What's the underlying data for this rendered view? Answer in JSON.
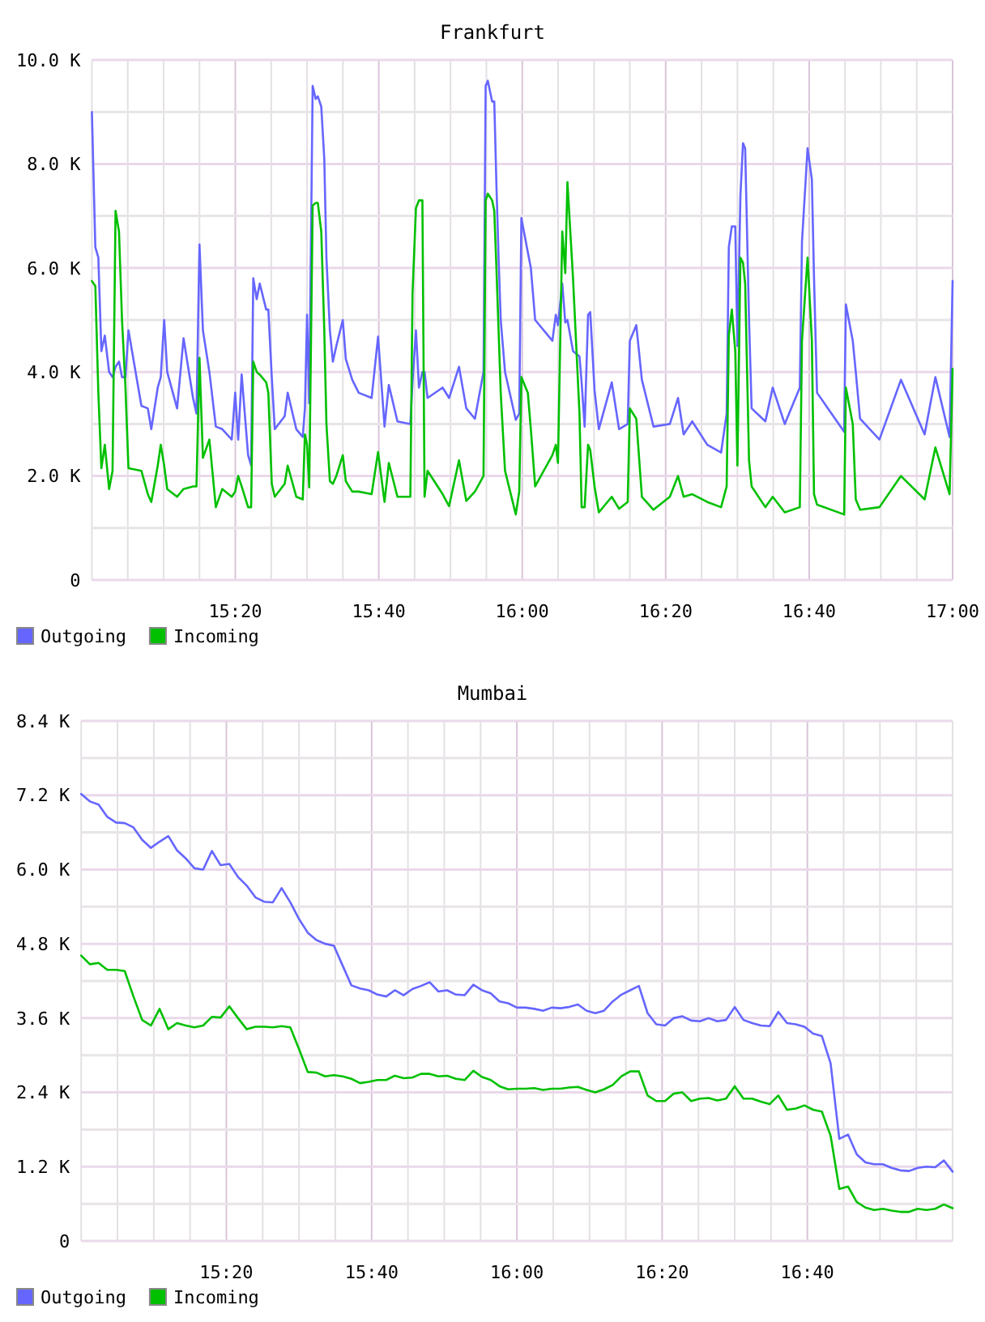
{
  "chart_data": [
    {
      "type": "line",
      "title": "Frankfurt",
      "x": [
        15.0,
        15.008,
        15.015,
        15.022,
        15.03,
        15.04,
        15.048,
        15.055,
        15.063,
        15.07,
        15.078,
        15.085,
        15.115,
        15.13,
        15.138,
        15.153,
        15.16,
        15.168,
        15.175,
        15.198,
        15.213,
        15.235,
        15.243,
        15.25,
        15.258,
        15.273,
        15.288,
        15.303,
        15.325,
        15.333,
        15.34,
        15.348,
        15.363,
        15.37,
        15.375,
        15.383,
        15.39,
        15.405,
        15.41,
        15.418,
        15.425,
        15.448,
        15.455,
        15.475,
        15.49,
        15.495,
        15.5,
        15.505,
        15.513,
        15.52,
        15.525,
        15.533,
        15.54,
        15.545,
        15.553,
        15.56,
        15.568,
        15.583,
        15.59,
        15.605,
        15.62,
        15.65,
        15.665,
        15.68,
        15.69,
        15.71,
        15.74,
        15.745,
        15.753,
        15.76,
        15.768,
        15.773,
        15.78,
        15.815,
        15.83,
        15.853,
        15.87,
        15.89,
        15.91,
        15.915,
        15.92,
        15.93,
        15.935,
        15.94,
        15.945,
        15.95,
        15.96,
        15.985,
        15.993,
        15.998,
        16.013,
        16.02,
        16.03,
        16.07,
        16.078,
        16.083,
        16.093,
        16.1,
        16.105,
        16.118,
        16.133,
        16.138,
        16.145,
        16.153,
        16.158,
        16.168,
        16.178,
        16.208,
        16.225,
        16.245,
        16.25,
        16.265,
        16.278,
        16.305,
        16.343,
        16.362,
        16.375,
        16.395,
        16.43,
        16.462,
        16.475,
        16.48,
        16.487,
        16.495,
        16.5,
        16.507,
        16.513,
        16.518,
        16.527,
        16.533,
        16.565,
        16.582,
        16.61,
        16.645,
        16.65,
        16.663,
        16.673,
        16.678,
        16.685,
        16.748,
        16.752,
        16.768,
        16.775,
        16.785,
        16.83,
        16.88,
        16.935,
        16.96,
        16.993,
        17.0
      ],
      "series": [
        {
          "name": "Outgoing",
          "color": "#6666ff",
          "values": [
            9000,
            6400,
            6200,
            4400,
            4700,
            4000,
            3900,
            4100,
            4200,
            3900,
            3900,
            4800,
            3350,
            3300,
            2900,
            3700,
            3900,
            5000,
            4000,
            3300,
            4650,
            3500,
            3200,
            6450,
            4800,
            4000,
            2950,
            2900,
            2700,
            3600,
            2700,
            3950,
            2400,
            2200,
            5800,
            5400,
            5700,
            5200,
            5200,
            3900,
            2900,
            3150,
            3600,
            2900,
            2750,
            3300,
            5100,
            3400,
            9500,
            9250,
            9300,
            9100,
            8100,
            6200,
            4800,
            4200,
            4500,
            5000,
            4250,
            3850,
            3600,
            3500,
            4680,
            2950,
            3750,
            3050,
            3000,
            3800,
            4800,
            3700,
            4000,
            4000,
            3500,
            3700,
            3500,
            4100,
            3300,
            3100,
            4000,
            9500,
            9600,
            9200,
            9200,
            7600,
            6200,
            5000,
            4000,
            3080,
            3200,
            6960,
            6300,
            6000,
            5000,
            4600,
            5100,
            4900,
            5700,
            4950,
            5000,
            4400,
            4300,
            3800,
            2950,
            5100,
            5150,
            3650,
            2900,
            3800,
            2900,
            3000,
            4600,
            4900,
            3850,
            2950,
            3000,
            3500,
            2800,
            3050,
            2600,
            2450,
            3200,
            6400,
            6800,
            6800,
            4500,
            7400,
            8400,
            8300,
            5000,
            3300,
            3050,
            3700,
            3000,
            3700,
            6500,
            8300,
            7700,
            5800,
            3600,
            2850,
            5300,
            4600,
            4000,
            3100,
            2700,
            3850,
            2800,
            3900,
            2750,
            5750
          ]
        },
        {
          "name": "Incoming",
          "color": "#00c000",
          "values": [
            5750,
            5650,
            3600,
            2150,
            2600,
            1750,
            2100,
            7100,
            6700,
            5000,
            3700,
            2150,
            2100,
            1650,
            1500,
            2200,
            2600,
            2200,
            1750,
            1600,
            1750,
            1800,
            1800,
            4270,
            2350,
            2700,
            1400,
            1750,
            1600,
            1700,
            2000,
            1800,
            1400,
            1400,
            4200,
            4000,
            3950,
            3800,
            3600,
            1850,
            1600,
            1850,
            2200,
            1600,
            1550,
            2800,
            2600,
            1780,
            7200,
            7250,
            7250,
            6700,
            4800,
            3000,
            1900,
            1850,
            2000,
            2400,
            1900,
            1700,
            1700,
            1650,
            2460,
            1500,
            2250,
            1600,
            1600,
            5500,
            7150,
            7300,
            7300,
            1600,
            2100,
            1650,
            1420,
            2300,
            1520,
            1700,
            2000,
            7300,
            7430,
            7300,
            7100,
            6000,
            4800,
            3600,
            2100,
            1260,
            1700,
            3900,
            3600,
            2900,
            1800,
            2400,
            2600,
            2250,
            6700,
            5900,
            7650,
            5800,
            3200,
            1400,
            1400,
            2600,
            2500,
            1800,
            1300,
            1600,
            1370,
            1500,
            3300,
            3100,
            1600,
            1350,
            1600,
            2000,
            1600,
            1650,
            1500,
            1400,
            1800,
            4700,
            5200,
            4400,
            2200,
            6200,
            6100,
            5700,
            2300,
            1800,
            1400,
            1600,
            1300,
            1400,
            4600,
            6200,
            4600,
            1650,
            1450,
            1260,
            3700,
            3000,
            1550,
            1350,
            1400,
            2000,
            1550,
            2550,
            1650,
            4060
          ]
        }
      ],
      "xlim": [
        15,
        17
      ],
      "xticks": [
        {
          "value": 15,
          "label": null
        },
        {
          "value": 15.0833,
          "label": null
        },
        {
          "value": 15.1667,
          "label": null
        },
        {
          "value": 15.25,
          "label": null
        },
        {
          "value": 15.3333,
          "label": "15:20"
        },
        {
          "value": 15.4167,
          "label": null
        },
        {
          "value": 15.5,
          "label": null
        },
        {
          "value": 15.5833,
          "label": null
        },
        {
          "value": 15.6667,
          "label": "15:40"
        },
        {
          "value": 15.75,
          "label": null
        },
        {
          "value": 15.8333,
          "label": null
        },
        {
          "value": 15.9167,
          "label": null
        },
        {
          "value": 16,
          "label": "16:00"
        },
        {
          "value": 16.0833,
          "label": null
        },
        {
          "value": 16.1667,
          "label": null
        },
        {
          "value": 16.25,
          "label": null
        },
        {
          "value": 16.3333,
          "label": "16:20"
        },
        {
          "value": 16.4167,
          "label": null
        },
        {
          "value": 16.5,
          "label": null
        },
        {
          "value": 16.5833,
          "label": null
        },
        {
          "value": 16.6667,
          "label": "16:40"
        },
        {
          "value": 16.75,
          "label": null
        },
        {
          "value": 16.8333,
          "label": null
        },
        {
          "value": 16.9167,
          "label": null
        },
        {
          "value": 17,
          "label": "17:00"
        }
      ],
      "ylim": [
        0,
        10000
      ],
      "yticks": [
        0,
        {
          "value": 1000,
          "label": null
        },
        {
          "value": 2000,
          "label": "2.0 K"
        },
        {
          "value": 3000,
          "label": null
        },
        {
          "value": 4000,
          "label": "4.0 K"
        },
        {
          "value": 5000,
          "label": null
        },
        {
          "value": 6000,
          "label": "6.0 K"
        },
        {
          "value": 7000,
          "label": null
        },
        {
          "value": 8000,
          "label": "8.0 K"
        },
        {
          "value": 9000,
          "label": null
        },
        {
          "value": 10000,
          "label": "10.0 K"
        }
      ],
      "grid": true,
      "legend": "bottom left"
    },
    {
      "type": "line",
      "title": "Mumbai",
      "x": [
        15.0,
        15.02,
        15.04,
        15.06,
        15.08,
        15.1,
        15.12,
        15.14,
        15.16,
        15.18,
        15.2,
        15.22,
        15.24,
        15.26,
        15.28,
        15.3,
        15.32,
        15.34,
        15.36,
        15.38,
        15.4,
        15.42,
        15.44,
        15.46,
        15.48,
        15.5,
        15.52,
        15.54,
        15.56,
        15.58,
        15.6,
        15.62,
        15.64,
        15.66,
        15.68,
        15.7,
        15.72,
        15.74,
        15.76,
        15.78,
        15.8,
        15.82,
        15.84,
        15.86,
        15.88,
        15.9,
        15.92,
        15.94,
        15.96,
        15.98,
        16.0,
        16.02,
        16.04,
        16.06,
        16.08,
        16.1,
        16.12,
        16.14,
        16.16,
        16.18,
        16.2,
        16.22,
        16.24,
        16.26,
        16.28,
        16.3,
        16.32,
        16.34,
        16.36,
        16.38,
        16.4,
        16.42,
        16.44,
        16.46,
        16.48,
        16.5,
        16.52,
        16.54,
        16.56,
        16.58,
        16.6,
        16.62,
        16.64,
        16.66,
        16.68,
        16.7,
        16.72,
        16.74,
        16.76,
        16.78,
        16.8,
        16.82,
        16.84,
        16.86,
        16.88,
        16.9,
        16.92,
        16.94,
        16.96,
        16.98,
        17.0
      ],
      "series": [
        {
          "name": "Outgoing",
          "color": "#6666ff",
          "values": [
            7220,
            7100,
            7050,
            6850,
            6760,
            6750,
            6680,
            6480,
            6350,
            6450,
            6540,
            6310,
            6180,
            6020,
            6000,
            6300,
            6070,
            6090,
            5880,
            5740,
            5550,
            5480,
            5470,
            5700,
            5470,
            5200,
            4980,
            4860,
            4800,
            4770,
            4450,
            4130,
            4080,
            4050,
            3980,
            3950,
            4050,
            3970,
            4070,
            4120,
            4180,
            4030,
            4050,
            3980,
            3970,
            4140,
            4050,
            4000,
            3870,
            3840,
            3770,
            3770,
            3750,
            3720,
            3770,
            3760,
            3780,
            3820,
            3720,
            3680,
            3720,
            3870,
            3980,
            4050,
            4120,
            3680,
            3500,
            3480,
            3600,
            3630,
            3560,
            3550,
            3600,
            3550,
            3570,
            3780,
            3570,
            3520,
            3480,
            3470,
            3700,
            3520,
            3500,
            3460,
            3350,
            3310,
            2870,
            1650,
            1720,
            1400,
            1270,
            1240,
            1240,
            1180,
            1140,
            1130,
            1180,
            1200,
            1190,
            1300,
            1120
          ]
        },
        {
          "name": "Incoming",
          "color": "#00c000",
          "values": [
            4610,
            4470,
            4490,
            4380,
            4380,
            4360,
            3950,
            3570,
            3480,
            3750,
            3420,
            3520,
            3480,
            3450,
            3480,
            3620,
            3610,
            3790,
            3600,
            3420,
            3460,
            3460,
            3450,
            3470,
            3450,
            3100,
            2730,
            2720,
            2660,
            2680,
            2660,
            2620,
            2550,
            2570,
            2600,
            2600,
            2670,
            2630,
            2640,
            2700,
            2700,
            2660,
            2670,
            2620,
            2600,
            2750,
            2650,
            2600,
            2500,
            2450,
            2460,
            2460,
            2470,
            2440,
            2460,
            2460,
            2480,
            2490,
            2440,
            2400,
            2450,
            2520,
            2660,
            2740,
            2740,
            2350,
            2260,
            2260,
            2380,
            2400,
            2260,
            2300,
            2310,
            2270,
            2300,
            2500,
            2300,
            2300,
            2250,
            2210,
            2350,
            2120,
            2140,
            2190,
            2120,
            2090,
            1700,
            840,
            880,
            630,
            540,
            500,
            520,
            490,
            470,
            470,
            520,
            500,
            520,
            590,
            530
          ]
        }
      ],
      "xlim": [
        15,
        17
      ],
      "xticks": [
        {
          "value": 15,
          "label": null
        },
        {
          "value": 15.0833,
          "label": null
        },
        {
          "value": 15.1667,
          "label": null
        },
        {
          "value": 15.25,
          "label": null
        },
        {
          "value": 15.3333,
          "label": "15:20"
        },
        {
          "value": 15.4167,
          "label": null
        },
        {
          "value": 15.5,
          "label": null
        },
        {
          "value": 15.5833,
          "label": null
        },
        {
          "value": 15.6667,
          "label": "15:40"
        },
        {
          "value": 15.75,
          "label": null
        },
        {
          "value": 15.8333,
          "label": null
        },
        {
          "value": 15.9167,
          "label": null
        },
        {
          "value": 16,
          "label": "16:00"
        },
        {
          "value": 16.0833,
          "label": null
        },
        {
          "value": 16.1667,
          "label": null
        },
        {
          "value": 16.25,
          "label": null
        },
        {
          "value": 16.3333,
          "label": "16:20"
        },
        {
          "value": 16.4167,
          "label": null
        },
        {
          "value": 16.5,
          "label": null
        },
        {
          "value": 16.5833,
          "label": null
        },
        {
          "value": 16.6667,
          "label": "16:40"
        },
        {
          "value": 16.75,
          "label": null
        },
        {
          "value": 16.8333,
          "label": null
        },
        {
          "value": 16.9167,
          "label": null
        },
        {
          "value": 17,
          "label": null
        }
      ],
      "ylim": [
        0,
        8400
      ],
      "yticks": [
        0,
        {
          "value": 600,
          "label": null
        },
        {
          "value": 1200,
          "label": "1.2 K"
        },
        {
          "value": 1800,
          "label": null
        },
        {
          "value": 2400,
          "label": "2.4 K"
        },
        {
          "value": 3000,
          "label": null
        },
        {
          "value": 3600,
          "label": "3.6 K"
        },
        {
          "value": 4200,
          "label": null
        },
        {
          "value": 4800,
          "label": "4.8 K"
        },
        {
          "value": 5400,
          "label": null
        },
        {
          "value": 6000,
          "label": "6.0 K"
        },
        {
          "value": 6600,
          "label": null
        },
        {
          "value": 7200,
          "label": "7.2 K"
        },
        {
          "value": 7800,
          "label": null
        },
        {
          "value": 8400,
          "label": "8.4 K"
        }
      ],
      "grid": true,
      "legend": "bottom left"
    }
  ]
}
